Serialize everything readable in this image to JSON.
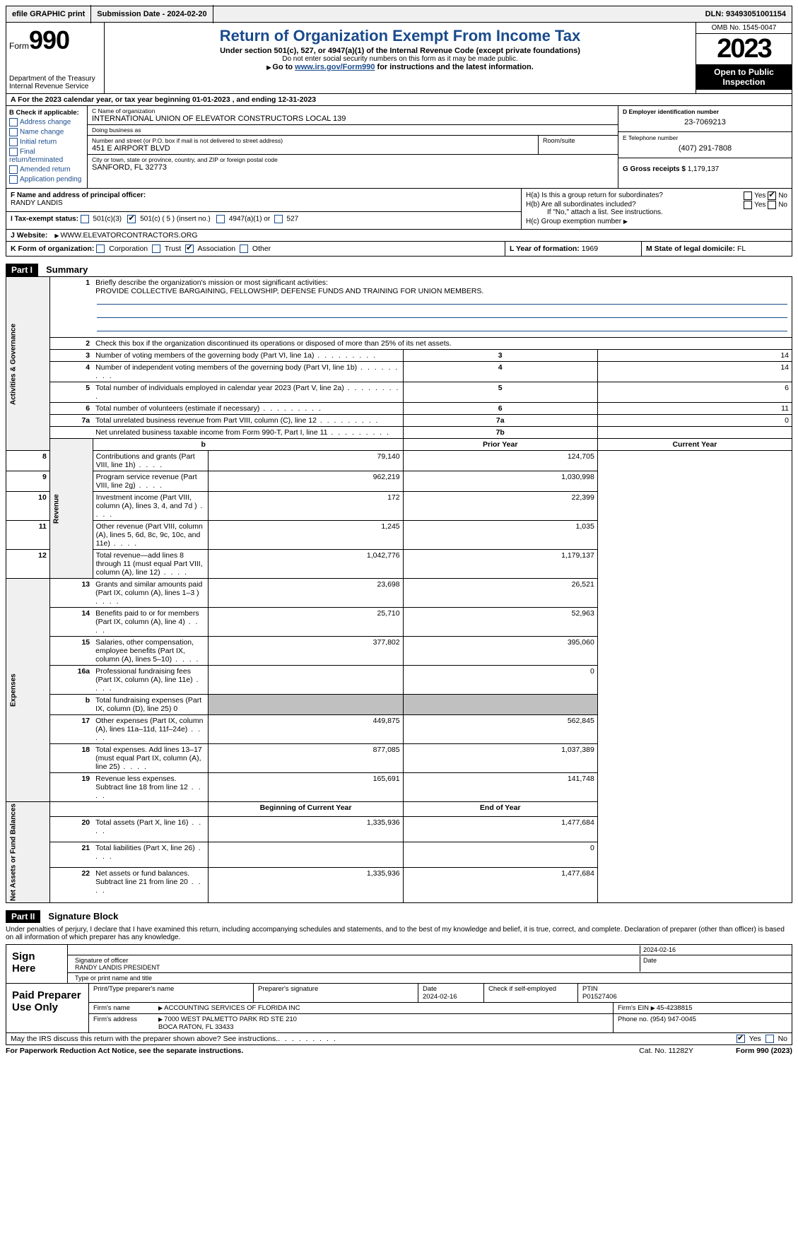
{
  "top": {
    "efile": "efile GRAPHIC print",
    "sub_label": "Submission Date - 2024-02-20",
    "dln": "DLN: 93493051001154"
  },
  "header": {
    "form_prefix": "Form",
    "form_num": "990",
    "dept": "Department of the Treasury",
    "irs": "Internal Revenue Service",
    "title": "Return of Organization Exempt From Income Tax",
    "sub1": "Under section 501(c), 527, or 4947(a)(1) of the Internal Revenue Code (except private foundations)",
    "sub2": "Do not enter social security numbers on this form as it may be made public.",
    "sub3_pre": "Go to ",
    "sub3_link": "www.irs.gov/Form990",
    "sub3_post": " for instructions and the latest information.",
    "omb": "OMB No. 1545-0047",
    "year": "2023",
    "open": "Open to Public Inspection"
  },
  "a_line": "For the 2023 calendar year, or tax year beginning 01-01-2023    , and ending 12-31-2023",
  "b": {
    "header": "B Check if applicable:",
    "opts": [
      "Address change",
      "Name change",
      "Initial return",
      "Final return/terminated",
      "Amended return",
      "Application pending"
    ]
  },
  "c": {
    "name_label": "C Name of organization",
    "name": "INTERNATIONAL UNION OF ELEVATOR CONSTRUCTORS LOCAL 139",
    "dba_label": "Doing business as",
    "dba": "",
    "street_label": "Number and street (or P.O. box if mail is not delivered to street address)",
    "street": "451 E AIRPORT BLVD",
    "room_label": "Room/suite",
    "city_label": "City or town, state or province, country, and ZIP or foreign postal code",
    "city": "SANFORD, FL  32773"
  },
  "d": {
    "label": "D Employer identification number",
    "val": "23-7069213"
  },
  "e": {
    "label": "E Telephone number",
    "val": "(407) 291-7808"
  },
  "g": {
    "label": "G Gross receipts $",
    "val": "1,179,137"
  },
  "f": {
    "label": "F  Name and address of principal officer:",
    "val": "RANDY LANDIS"
  },
  "h": {
    "a": "H(a)  Is this a group return for subordinates?",
    "b": "H(b)  Are all subordinates included?",
    "b_note": "If \"No,\" attach a list. See instructions.",
    "c": "H(c)  Group exemption number",
    "yes": "Yes",
    "no": "No"
  },
  "i": {
    "label": "I   Tax-exempt status:",
    "o1": "501(c)(3)",
    "o2": "501(c) ( 5 ) (insert no.)",
    "o3": "4947(a)(1) or",
    "o4": "527"
  },
  "j": {
    "label": "J   Website:",
    "val": "WWW.ELEVATORCONTRACTORS.ORG"
  },
  "k": {
    "label": "K Form of organization:",
    "o1": "Corporation",
    "o2": "Trust",
    "o3": "Association",
    "o4": "Other"
  },
  "l": {
    "label": "L Year of formation:",
    "val": "1969"
  },
  "m": {
    "label": "M State of legal domicile:",
    "val": "FL"
  },
  "part1": {
    "tag": "Part I",
    "title": "Summary"
  },
  "summary": {
    "line1_label": "Briefly describe the organization's mission or most significant activities:",
    "line1_val": "PROVIDE COLLECTIVE BARGAINING, FELLOWSHIP, DEFENSE FUNDS AND TRAINING FOR UNION MEMBERS.",
    "line2": "Check this box      if the organization discontinued its operations or disposed of more than 25% of its net assets.",
    "prior_hdr": "Prior Year",
    "curr_hdr": "Current Year",
    "begin_hdr": "Beginning of Current Year",
    "end_hdr": "End of Year",
    "rows_gov": [
      {
        "n": "3",
        "d": "Number of voting members of the governing body (Part VI, line 1a)",
        "r": "3",
        "v": "14"
      },
      {
        "n": "4",
        "d": "Number of independent voting members of the governing body (Part VI, line 1b)",
        "r": "4",
        "v": "14"
      },
      {
        "n": "5",
        "d": "Total number of individuals employed in calendar year 2023 (Part V, line 2a)",
        "r": "5",
        "v": "6"
      },
      {
        "n": "6",
        "d": "Total number of volunteers (estimate if necessary)",
        "r": "6",
        "v": "11"
      },
      {
        "n": "7a",
        "d": "Total unrelated business revenue from Part VIII, column (C), line 12",
        "r": "7a",
        "v": "0"
      },
      {
        "n": "",
        "d": "Net unrelated business taxable income from Form 990-T, Part I, line 11",
        "r": "7b",
        "v": ""
      }
    ],
    "rows_rev": [
      {
        "n": "8",
        "d": "Contributions and grants (Part VIII, line 1h)",
        "p": "79,140",
        "c": "124,705"
      },
      {
        "n": "9",
        "d": "Program service revenue (Part VIII, line 2g)",
        "p": "962,219",
        "c": "1,030,998"
      },
      {
        "n": "10",
        "d": "Investment income (Part VIII, column (A), lines 3, 4, and 7d )",
        "p": "172",
        "c": "22,399"
      },
      {
        "n": "11",
        "d": "Other revenue (Part VIII, column (A), lines 5, 6d, 8c, 9c, 10c, and 11e)",
        "p": "1,245",
        "c": "1,035"
      },
      {
        "n": "12",
        "d": "Total revenue—add lines 8 through 11 (must equal Part VIII, column (A), line 12)",
        "p": "1,042,776",
        "c": "1,179,137"
      }
    ],
    "rows_exp": [
      {
        "n": "13",
        "d": "Grants and similar amounts paid (Part IX, column (A), lines 1–3 )",
        "p": "23,698",
        "c": "26,521"
      },
      {
        "n": "14",
        "d": "Benefits paid to or for members (Part IX, column (A), line 4)",
        "p": "25,710",
        "c": "52,963"
      },
      {
        "n": "15",
        "d": "Salaries, other compensation, employee benefits (Part IX, column (A), lines 5–10)",
        "p": "377,802",
        "c": "395,060"
      },
      {
        "n": "16a",
        "d": "Professional fundraising fees (Part IX, column (A), line 11e)",
        "p": "",
        "c": "0"
      },
      {
        "n": "b",
        "d": "Total fundraising expenses (Part IX, column (D), line 25) 0",
        "p": "SHADE",
        "c": "SHADE"
      },
      {
        "n": "17",
        "d": "Other expenses (Part IX, column (A), lines 11a–11d, 11f–24e)",
        "p": "449,875",
        "c": "562,845"
      },
      {
        "n": "18",
        "d": "Total expenses. Add lines 13–17 (must equal Part IX, column (A), line 25)",
        "p": "877,085",
        "c": "1,037,389"
      },
      {
        "n": "19",
        "d": "Revenue less expenses. Subtract line 18 from line 12",
        "p": "165,691",
        "c": "141,748"
      }
    ],
    "rows_net": [
      {
        "n": "20",
        "d": "Total assets (Part X, line 16)",
        "p": "1,335,936",
        "c": "1,477,684"
      },
      {
        "n": "21",
        "d": "Total liabilities (Part X, line 26)",
        "p": "",
        "c": "0"
      },
      {
        "n": "22",
        "d": "Net assets or fund balances. Subtract line 21 from line 20",
        "p": "1,335,936",
        "c": "1,477,684"
      }
    ],
    "side_gov": "Activities & Governance",
    "side_rev": "Revenue",
    "side_exp": "Expenses",
    "side_net": "Net Assets or Fund Balances",
    "b_row": "b"
  },
  "part2": {
    "tag": "Part II",
    "title": "Signature Block"
  },
  "sig": {
    "declare": "Under penalties of perjury, I declare that I have examined this return, including accompanying schedules and statements, and to the best of my knowledge and belief, it is true, correct, and complete. Declaration of preparer (other than officer) is based on all information of which preparer has any knowledge.",
    "sign_here": "Sign Here",
    "sig_officer": "Signature of officer",
    "officer": "RANDY LANDIS  PRESIDENT",
    "type_label": "Type or print name and title",
    "date_label": "Date",
    "date": "2024-02-16"
  },
  "prep": {
    "title": "Paid Preparer Use Only",
    "print_label": "Print/Type preparer's name",
    "sig_label": "Preparer's signature",
    "date_label": "Date",
    "date": "2024-02-16",
    "check_label": "Check        if self-employed",
    "ptin_label": "PTIN",
    "ptin": "P01527406",
    "firm_name_label": "Firm's name",
    "firm_name": "ACCOUNTING SERVICES OF FLORIDA INC",
    "firm_ein_label": "Firm's EIN",
    "firm_ein": "45-4238815",
    "firm_addr_label": "Firm's address",
    "firm_addr1": "7000 WEST PALMETTO PARK RD STE 210",
    "firm_addr2": "BOCA RATON, FL  33433",
    "phone_label": "Phone no.",
    "phone": "(954) 947-0045"
  },
  "discuss": "May the IRS discuss this return with the preparer shown above? See instructions.",
  "footer": {
    "left": "For Paperwork Reduction Act Notice, see the separate instructions.",
    "mid": "Cat. No. 11282Y",
    "right": "Form 990 (2023)"
  }
}
